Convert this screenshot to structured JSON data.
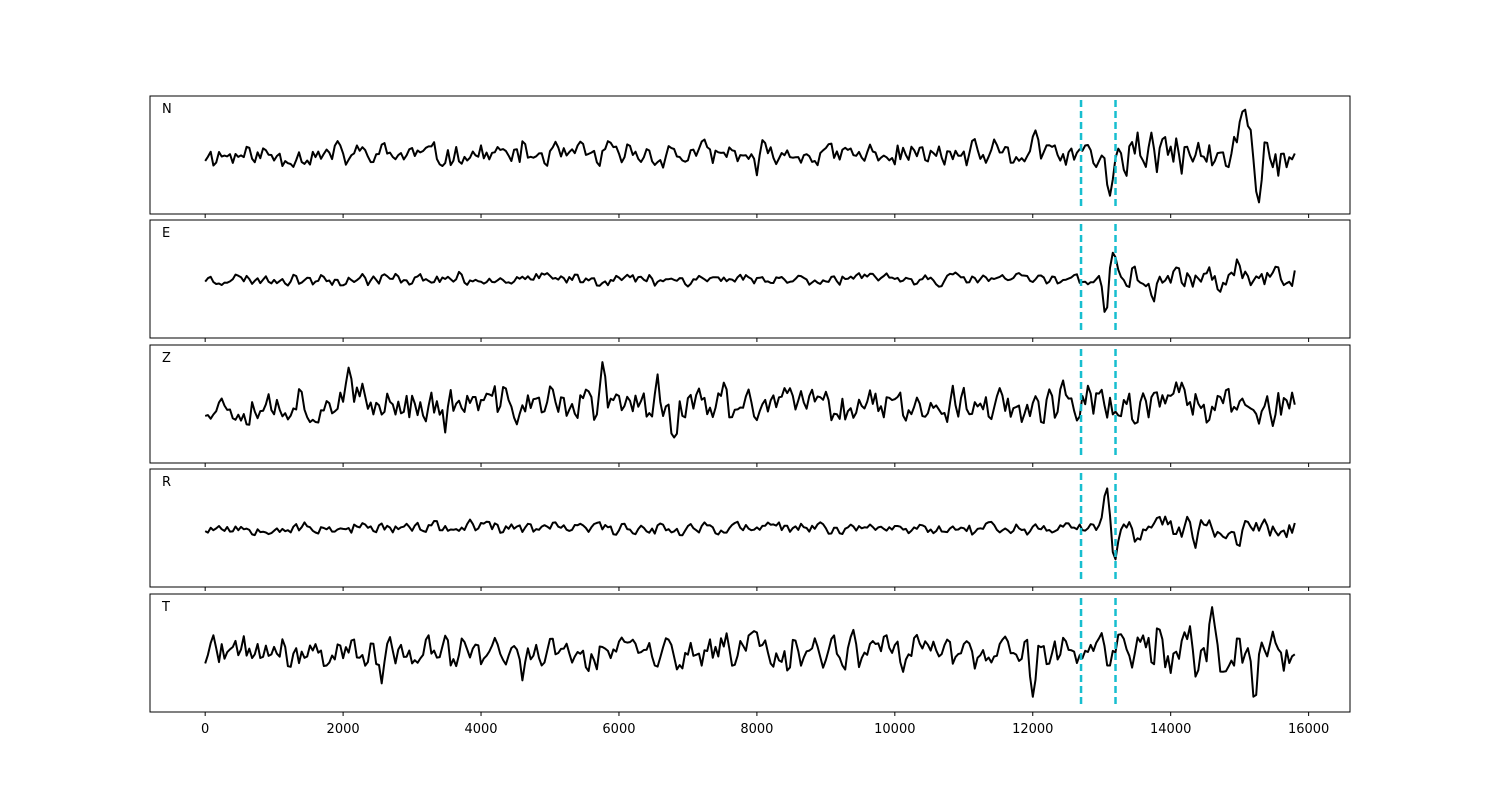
{
  "chart_data": {
    "type": "line",
    "title": "",
    "xlabel": "",
    "ylabel": "",
    "xlim": [
      -800,
      16600
    ],
    "x_ticks": [
      0,
      2000,
      4000,
      6000,
      8000,
      10000,
      12000,
      14000,
      16000
    ],
    "x_tick_labels": [
      "0",
      "2000",
      "4000",
      "6000",
      "8000",
      "10000",
      "12000",
      "14000",
      "16000"
    ],
    "sample_count": 15800,
    "trace_color": "#000000",
    "marker_color": "#17becf",
    "vertical_markers": [
      12700,
      13200
    ],
    "grid": false,
    "panels": [
      {
        "label": "N",
        "ylim": [
          -1.05,
          1.05
        ],
        "noise_amplitude": 0.3,
        "bursts": [
          {
            "x": 13120,
            "amp": -0.9,
            "width": 60
          },
          {
            "x": 12040,
            "amp": 0.65,
            "width": 40
          },
          {
            "x": 7990,
            "amp": -0.55,
            "width": 40
          },
          {
            "x": 15080,
            "amp": 0.85,
            "width": 60
          },
          {
            "x": 14650,
            "amp": -0.6,
            "width": 40
          },
          {
            "x": 15270,
            "amp": -0.6,
            "width": 40
          },
          {
            "x": 15000,
            "amp": 0.75,
            "width": 50
          }
        ],
        "late_gain": 1.9,
        "seed": 11
      },
      {
        "label": "E",
        "ylim": [
          -1.05,
          1.05
        ],
        "noise_amplitude": 0.14,
        "bursts": [
          {
            "x": 13150,
            "amp": 0.75,
            "width": 70
          },
          {
            "x": 13070,
            "amp": -1.0,
            "width": 55
          },
          {
            "x": 13750,
            "amp": -0.5,
            "width": 40
          },
          {
            "x": 14980,
            "amp": 0.4,
            "width": 40
          },
          {
            "x": 15800,
            "amp": 0.3,
            "width": 30
          }
        ],
        "late_gain": 1.9,
        "seed": 23
      },
      {
        "label": "Z",
        "ylim": [
          -1.05,
          1.05
        ],
        "noise_amplitude": 0.44,
        "bursts": [
          {
            "x": 6550,
            "amp": 0.8,
            "width": 40
          },
          {
            "x": 6800,
            "amp": -0.9,
            "width": 40
          },
          {
            "x": 5770,
            "amp": 0.7,
            "width": 40
          },
          {
            "x": 3480,
            "amp": -0.55,
            "width": 40
          },
          {
            "x": 2090,
            "amp": 0.6,
            "width": 40
          },
          {
            "x": 15500,
            "amp": -0.6,
            "width": 40
          }
        ],
        "late_gain": 1.1,
        "seed": 37
      },
      {
        "label": "R",
        "ylim": [
          -1.05,
          1.05
        ],
        "noise_amplitude": 0.15,
        "bursts": [
          {
            "x": 13080,
            "amp": 1.05,
            "width": 55
          },
          {
            "x": 13180,
            "amp": -0.75,
            "width": 60
          },
          {
            "x": 13820,
            "amp": 0.45,
            "width": 40
          },
          {
            "x": 14350,
            "amp": -0.45,
            "width": 40
          },
          {
            "x": 15000,
            "amp": -0.5,
            "width": 40
          }
        ],
        "late_gain": 1.9,
        "seed": 53
      },
      {
        "label": "T",
        "ylim": [
          -1.05,
          1.05
        ],
        "noise_amplitude": 0.42,
        "bursts": [
          {
            "x": 12000,
            "amp": -0.9,
            "width": 40
          },
          {
            "x": 14600,
            "amp": 0.85,
            "width": 50
          },
          {
            "x": 15220,
            "amp": -0.85,
            "width": 40
          },
          {
            "x": 4600,
            "amp": -0.7,
            "width": 40
          },
          {
            "x": 2560,
            "amp": -0.6,
            "width": 40
          },
          {
            "x": 7990,
            "amp": 0.7,
            "width": 40
          }
        ],
        "late_gain": 1.35,
        "seed": 71
      }
    ]
  }
}
